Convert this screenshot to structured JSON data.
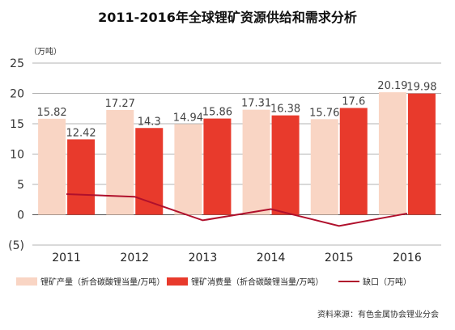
{
  "title": "2011-2016年全球锂矿资源供给和需求分析",
  "unit": "（万吨）",
  "source": "资料来源：有色金属协会锂业分会",
  "chart_data": {
    "type": "bar",
    "title": "2011-2016年全球锂矿资源供给和需求分析",
    "categories": [
      "2011",
      "2012",
      "2013",
      "2014",
      "2015",
      "2016"
    ],
    "y_tick_labels": [
      "(5)",
      "0",
      "5",
      "10",
      "15",
      "20",
      "25"
    ],
    "ylim": [
      -5,
      25
    ],
    "grid": true,
    "legend_position": "bottom",
    "series": [
      {
        "name": "锂矿产量（折合碳酸锂当量/万吨）",
        "type": "bar",
        "color": "#f9d5c4",
        "values": [
          15.82,
          17.27,
          14.94,
          17.31,
          15.76,
          20.19
        ],
        "labels": [
          "15.82",
          "17.27",
          "14.94",
          "17.31",
          "15.76",
          "20.19"
        ]
      },
      {
        "name": "锂矿消费量（折合碳酸锂当量/万吨）",
        "type": "bar",
        "color": "#e83a2c",
        "values": [
          12.42,
          14.3,
          15.86,
          16.38,
          17.6,
          19.98
        ],
        "labels": [
          "12.42",
          "14.3",
          "15.86",
          "16.38",
          "17.6",
          "19.98"
        ]
      },
      {
        "name": "缺口（万吨）",
        "type": "line",
        "color": "#b0102c",
        "values": [
          3.4,
          2.97,
          -0.92,
          0.93,
          -1.84,
          0.21
        ]
      }
    ]
  }
}
